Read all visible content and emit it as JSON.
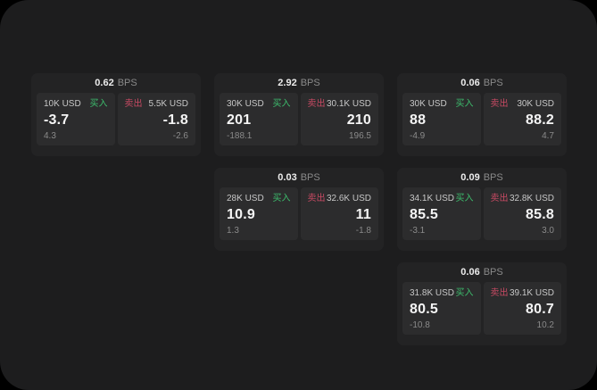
{
  "page": {
    "background": "#000000",
    "surface_background": "#1d1d1e"
  },
  "labels": {
    "bps_unit": "BPS",
    "buy": "买入",
    "sell": "卖出"
  },
  "colors": {
    "buy_green": "#3dbd6d",
    "sell_red": "#c84a63",
    "card_bg": "#232324",
    "panel_bg": "#2c2c2d"
  },
  "cards": [
    {
      "bps_value": "0.62",
      "buy": {
        "amount": "10K USD",
        "value": "-3.7",
        "sub": "4.3"
      },
      "sell": {
        "amount": "5.5K USD",
        "value": "-1.8",
        "sub": "-2.6"
      }
    },
    {
      "bps_value": "2.92",
      "buy": {
        "amount": "30K USD",
        "value": "201",
        "sub": "-188.1"
      },
      "sell": {
        "amount": "30.1K USD",
        "value": "210",
        "sub": "196.5"
      }
    },
    {
      "bps_value": "0.06",
      "buy": {
        "amount": "30K USD",
        "value": "88",
        "sub": "-4.9"
      },
      "sell": {
        "amount": "30K USD",
        "value": "88.2",
        "sub": "4.7"
      }
    },
    {
      "bps_value": "0.03",
      "buy": {
        "amount": "28K USD",
        "value": "10.9",
        "sub": "1.3"
      },
      "sell": {
        "amount": "32.6K USD",
        "value": "11",
        "sub": "-1.8"
      }
    },
    {
      "bps_value": "0.09",
      "buy": {
        "amount": "34.1K USD",
        "value": "85.5",
        "sub": "-3.1"
      },
      "sell": {
        "amount": "32.8K USD",
        "value": "85.8",
        "sub": "3.0"
      }
    },
    {
      "bps_value": "0.06",
      "buy": {
        "amount": "31.8K USD",
        "value": "80.5",
        "sub": "-10.8"
      },
      "sell": {
        "amount": "39.1K USD",
        "value": "80.7",
        "sub": "10.2"
      }
    }
  ]
}
